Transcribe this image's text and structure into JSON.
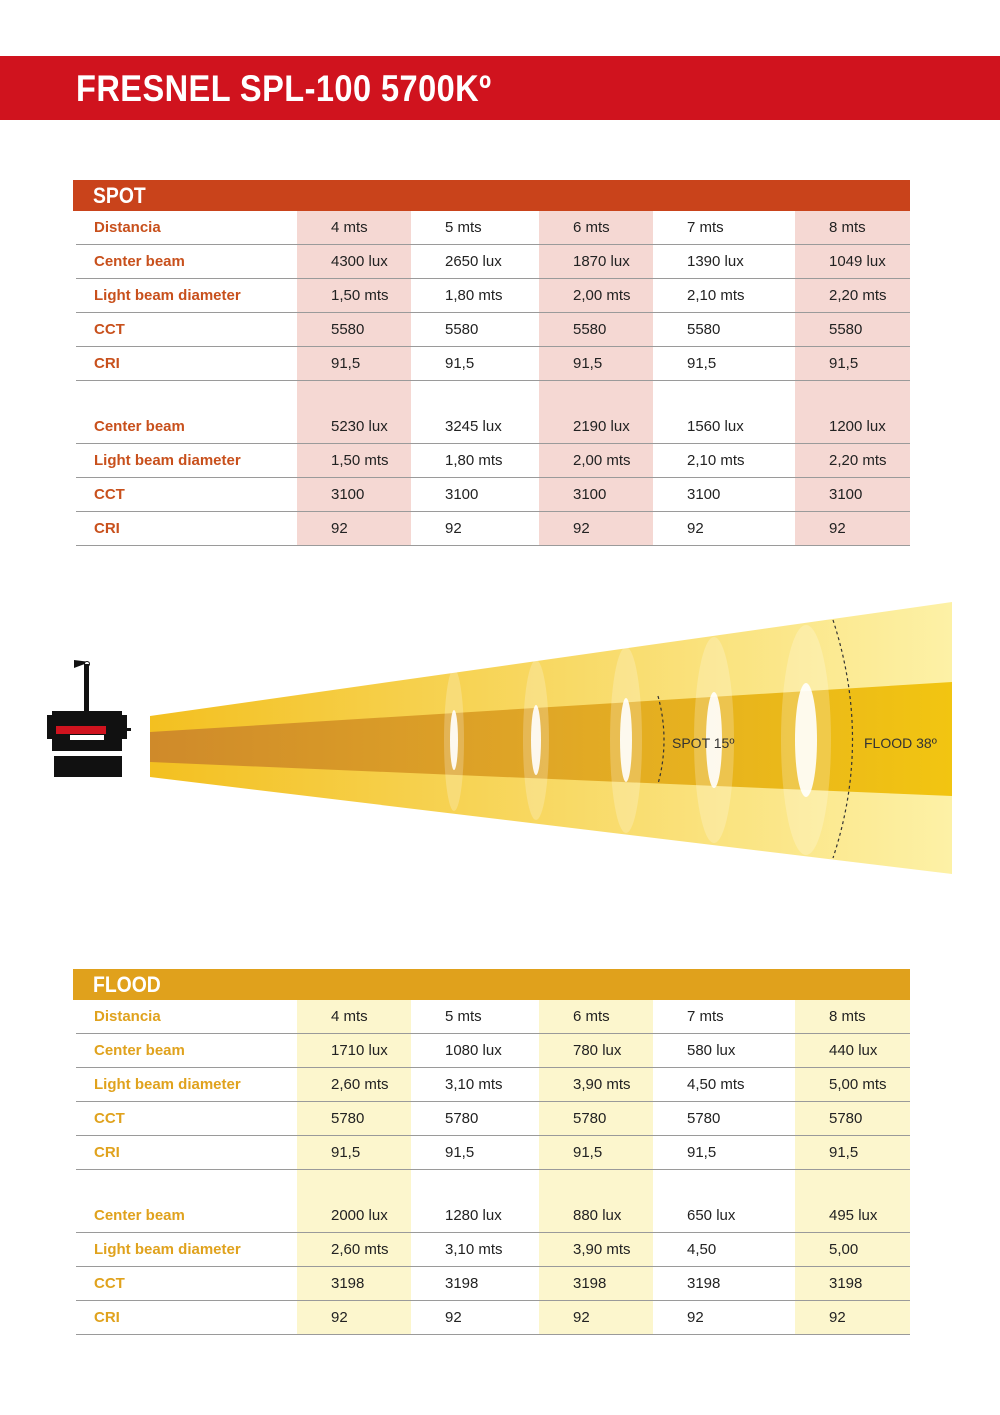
{
  "title": "FRESNEL SPL-100 5700Kº",
  "spot": {
    "heading": "SPOT",
    "distancia_label": "Distancia",
    "distances": [
      "4 mts",
      "5 mts",
      "6 mts",
      "7 mts",
      "8 mts"
    ],
    "group1": [
      {
        "label": "Center beam",
        "values": [
          "4300 lux",
          "2650 lux",
          "1870 lux",
          "1390 lux",
          "1049 lux"
        ]
      },
      {
        "label": "Light beam diameter",
        "values": [
          "1,50 mts",
          "1,80 mts",
          "2,00 mts",
          "2,10 mts",
          "2,20 mts"
        ]
      },
      {
        "label": "CCT",
        "values": [
          "5580",
          "5580",
          "5580",
          "5580",
          "5580"
        ]
      },
      {
        "label": "CRI",
        "values": [
          "91,5",
          "91,5",
          "91,5",
          "91,5",
          "91,5"
        ]
      }
    ],
    "group2": [
      {
        "label": "Center beam",
        "values": [
          "5230 lux",
          "3245 lux",
          "2190 lux",
          "1560 lux",
          "1200 lux"
        ]
      },
      {
        "label": "Light beam diameter",
        "values": [
          "1,50 mts",
          "1,80 mts",
          "2,00 mts",
          "2,10 mts",
          "2,20 mts"
        ]
      },
      {
        "label": "CCT",
        "values": [
          "3100",
          "3100",
          "3100",
          "3100",
          "3100"
        ]
      },
      {
        "label": "CRI",
        "values": [
          "92",
          "92",
          "92",
          "92",
          "92"
        ]
      }
    ]
  },
  "diagram": {
    "spot_label": "SPOT 15º",
    "flood_label": "FLOOD 38º"
  },
  "flood": {
    "heading": "FLOOD",
    "distancia_label": "Distancia",
    "distances": [
      "4 mts",
      "5 mts",
      "6 mts",
      "7 mts",
      "8 mts"
    ],
    "group1": [
      {
        "label": "Center beam",
        "values": [
          "1710 lux",
          "1080 lux",
          "780 lux",
          "580 lux",
          "440 lux"
        ]
      },
      {
        "label": "Light beam diameter",
        "values": [
          "2,60 mts",
          "3,10 mts",
          "3,90 mts",
          "4,50 mts",
          "5,00 mts"
        ]
      },
      {
        "label": "CCT",
        "values": [
          "5780",
          "5780",
          "5780",
          "5780",
          "5780"
        ]
      },
      {
        "label": "CRI",
        "values": [
          "91,5",
          "91,5",
          "91,5",
          "91,5",
          "91,5"
        ]
      }
    ],
    "group2": [
      {
        "label": "Center beam",
        "values": [
          "2000 lux",
          "1280 lux",
          "880 lux",
          "650 lux",
          "495 lux"
        ]
      },
      {
        "label": "Light beam diameter",
        "values": [
          "2,60 mts",
          "3,10 mts",
          "3,90 mts",
          "4,50",
          "5,00"
        ]
      },
      {
        "label": "CCT",
        "values": [
          "3198",
          "3198",
          "3198",
          "3198",
          "3198"
        ]
      },
      {
        "label": "CRI",
        "values": [
          "92",
          "92",
          "92",
          "92",
          "92"
        ]
      }
    ]
  },
  "colors": {
    "title_bar": "#d0131e",
    "spot_accent": "#c9431b",
    "spot_shade": "#f5d8d3",
    "flood_accent": "#e0a11c",
    "flood_shade": "#fcf6cd"
  }
}
